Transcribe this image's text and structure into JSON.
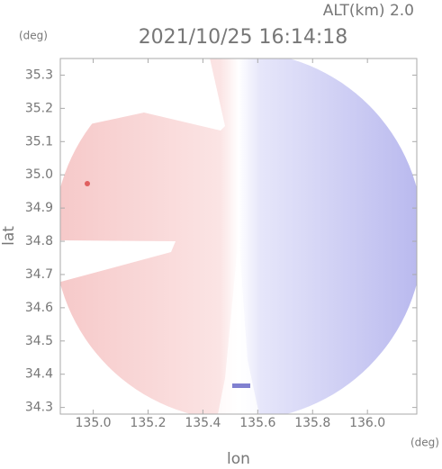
{
  "chart_data": {
    "type": "radar-image",
    "title": "2021/10/25 16:14:18",
    "subtitle": "ALT(km) 2.0",
    "x_label": "lon",
    "x_unit": "(deg)",
    "y_label": "lat",
    "y_unit": "(deg)",
    "xlim": [
      134.88,
      136.18
    ],
    "xticks": [
      {
        "value": 135.0,
        "label": "135.0"
      },
      135.2,
      135.4,
      135.6,
      135.8,
      {
        "value": 136.0,
        "label": "136.0"
      }
    ],
    "ylim": [
      34.28,
      35.35
    ],
    "yticks": [
      34.3,
      34.4,
      34.5,
      34.6,
      34.7,
      34.8,
      34.9,
      {
        "value": 35.0,
        "label": "35.0"
      },
      35.1,
      35.2,
      35.3
    ]
  }
}
